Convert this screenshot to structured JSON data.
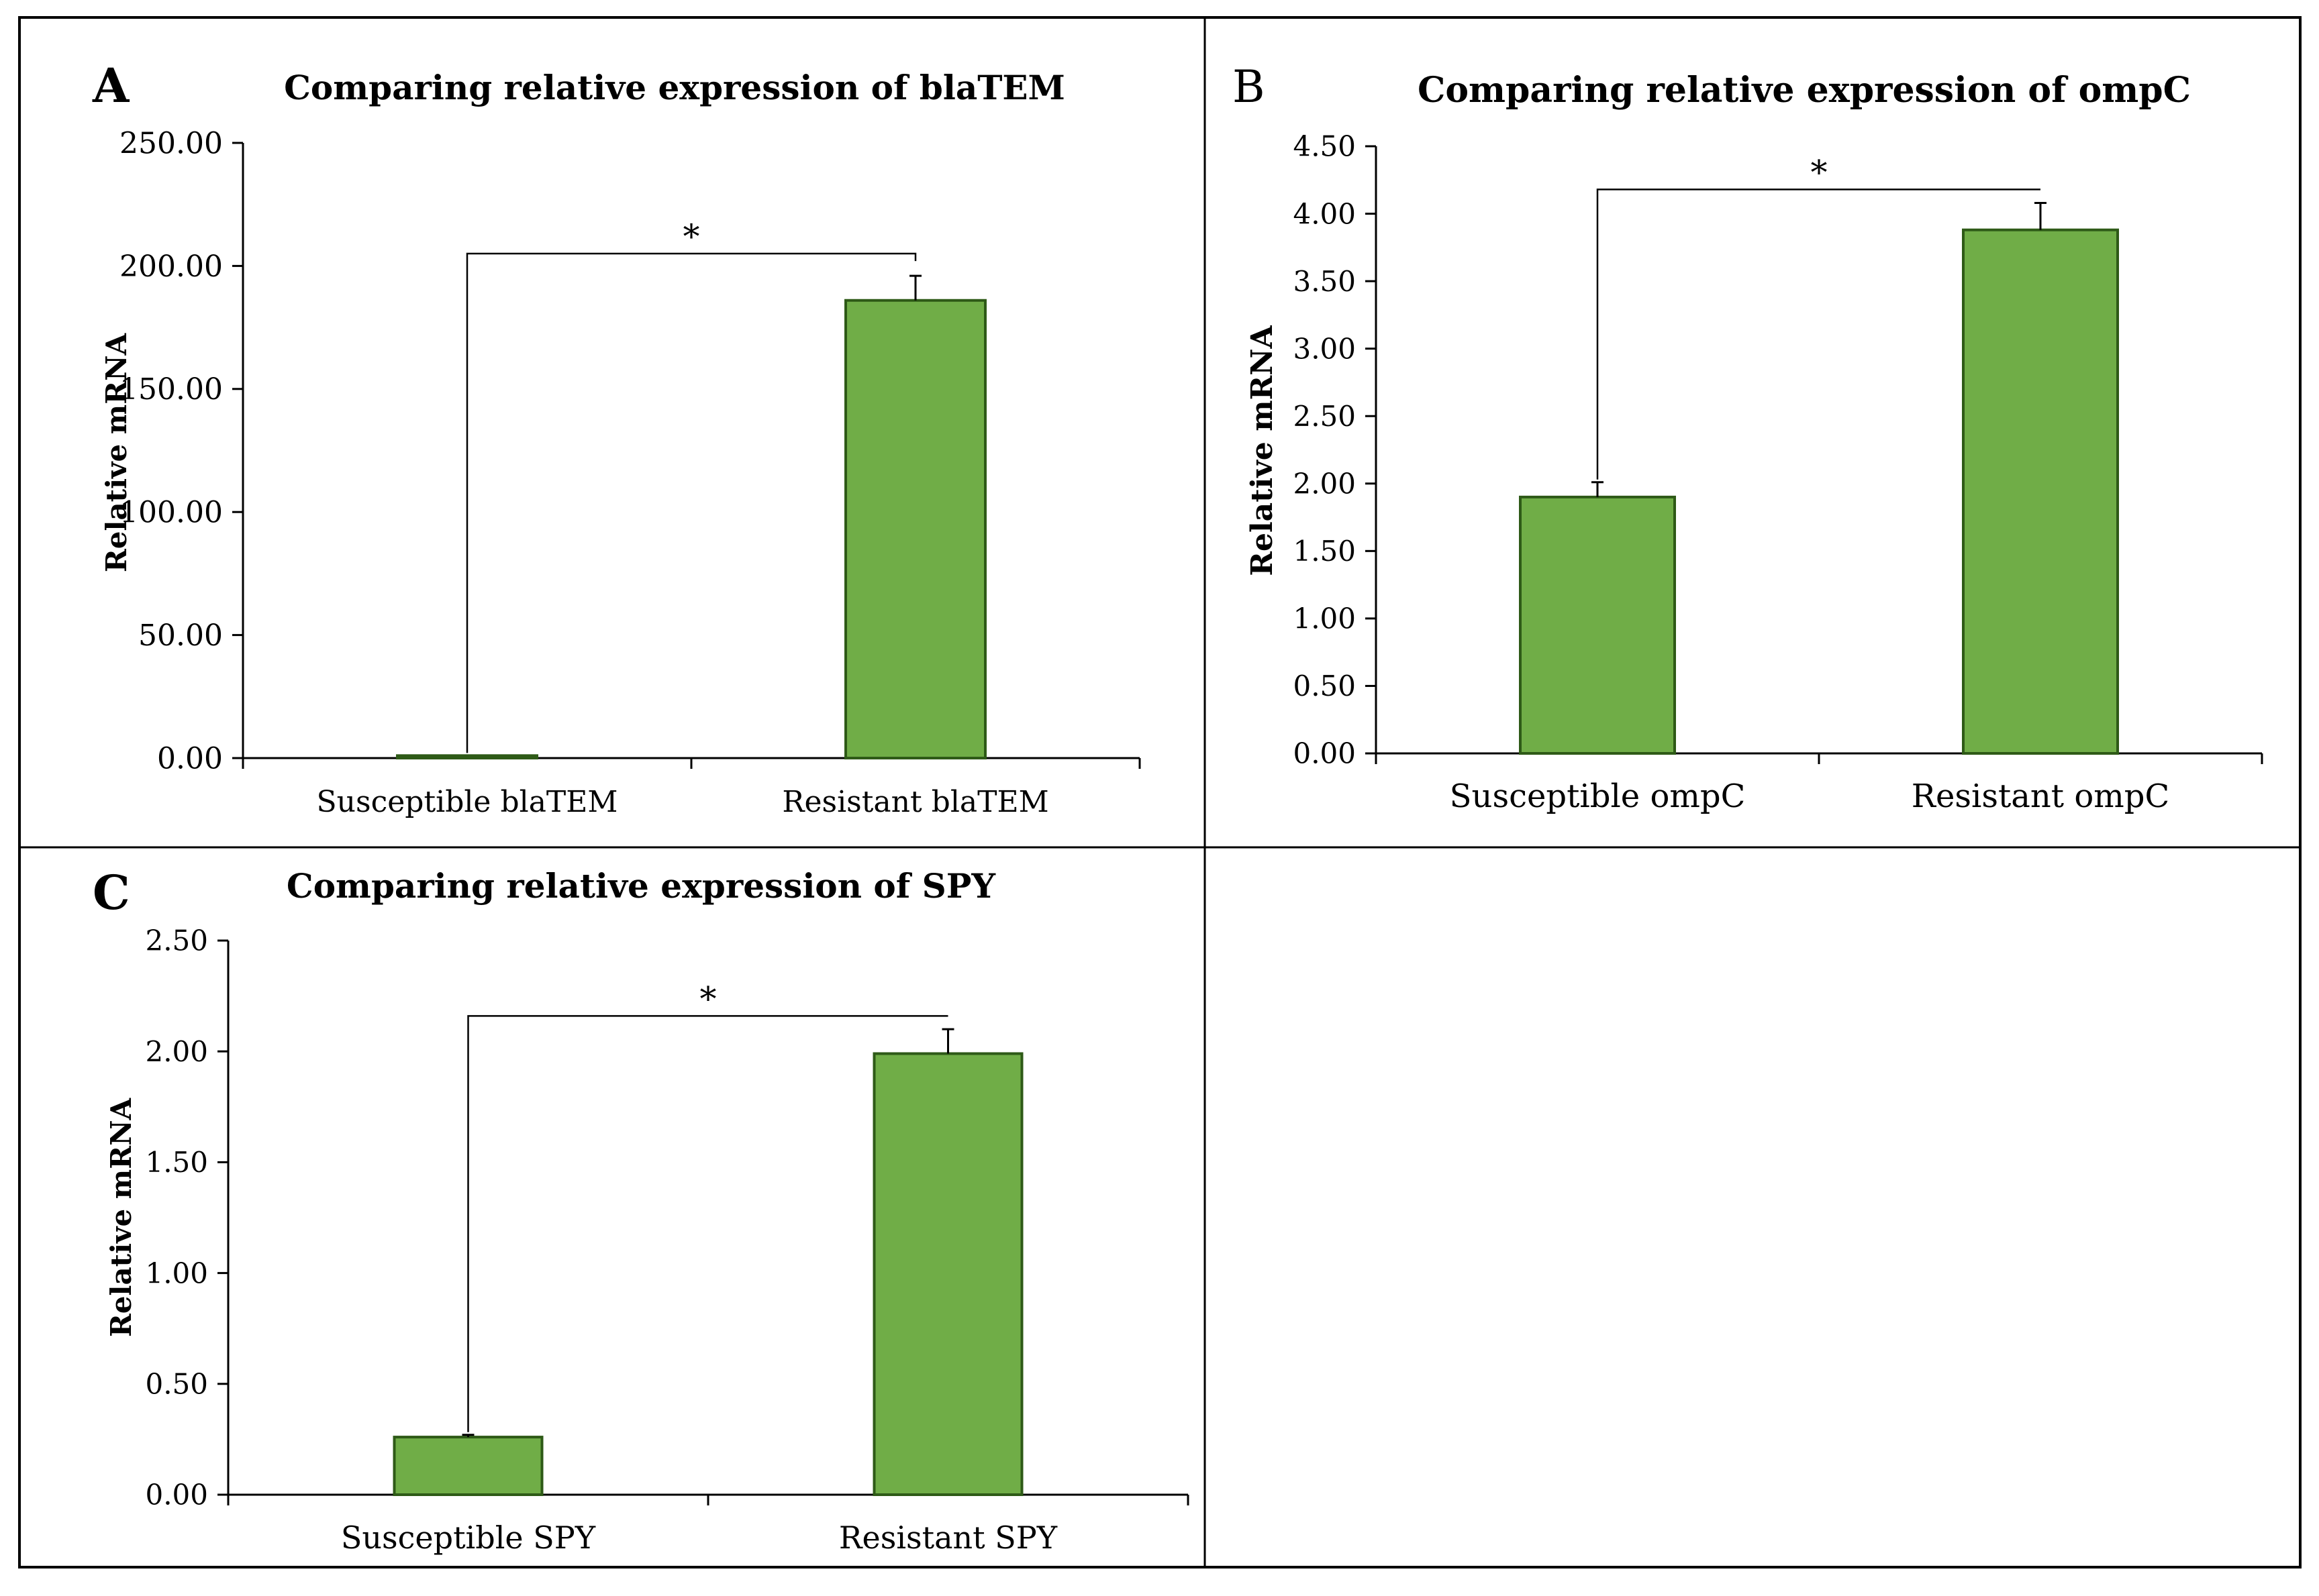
{
  "chart_data": [
    {
      "panel_label": "A",
      "type": "bar",
      "title": "Comparing relative expression of blaTEM",
      "ylabel": "Relative mRNA",
      "xlabel": "",
      "categories": [
        "Susceptible blaTEM",
        "Resistant blaTEM"
      ],
      "series": [
        {
          "values": [
            1.0,
            186.0
          ],
          "errors": [
            0.0,
            10.0
          ]
        }
      ],
      "ylim": [
        0,
        250
      ],
      "yticks": [
        "0.00",
        "50.00",
        "100.00",
        "150.00",
        "200.00",
        "250.00"
      ],
      "ytick_values": [
        0,
        50,
        100,
        150,
        200,
        250
      ],
      "significance": {
        "from": 0,
        "to": 1,
        "label": "*",
        "level": 205
      },
      "bar_color": "#70AD47",
      "bar_edge_color": "#2E5A17",
      "grid": false
    },
    {
      "panel_label": "B",
      "type": "bar",
      "title": "Comparing relative expression of ompC",
      "ylabel": "Relative mRNA",
      "xlabel": "",
      "categories": [
        "Susceptible ompC",
        "Resistant ompC"
      ],
      "series": [
        {
          "values": [
            1.9,
            3.88
          ],
          "errors": [
            0.11,
            0.2
          ]
        }
      ],
      "ylim": [
        0,
        4.5
      ],
      "yticks": [
        "0.00",
        "0.50",
        "1.00",
        "1.50",
        "2.00",
        "2.50",
        "3.00",
        "3.50",
        "4.00",
        "4.50"
      ],
      "ytick_values": [
        0,
        0.5,
        1.0,
        1.5,
        2.0,
        2.5,
        3.0,
        3.5,
        4.0,
        4.5
      ],
      "significance": {
        "from": 0,
        "to": 1,
        "label": "*",
        "level": 4.18
      },
      "bar_color": "#70AD47",
      "bar_edge_color": "#2E5A17",
      "grid": false
    },
    {
      "panel_label": "C",
      "type": "bar",
      "title": "Comparing relative expression of SPY",
      "ylabel": "Relative mRNA",
      "xlabel": "",
      "categories": [
        "Susceptible SPY",
        "Resistant SPY"
      ],
      "series": [
        {
          "values": [
            0.26,
            1.99
          ],
          "errors": [
            0.01,
            0.11
          ]
        }
      ],
      "ylim": [
        0,
        2.5
      ],
      "yticks": [
        "0.00",
        "0.50",
        "1.00",
        "1.50",
        "2.00",
        "2.50"
      ],
      "ytick_values": [
        0,
        0.5,
        1.0,
        1.5,
        2.0,
        2.5
      ],
      "significance": {
        "from": 0,
        "to": 1,
        "label": "*",
        "level": 2.16
      },
      "bar_color": "#70AD47",
      "bar_edge_color": "#2E5A17",
      "grid": false
    }
  ]
}
